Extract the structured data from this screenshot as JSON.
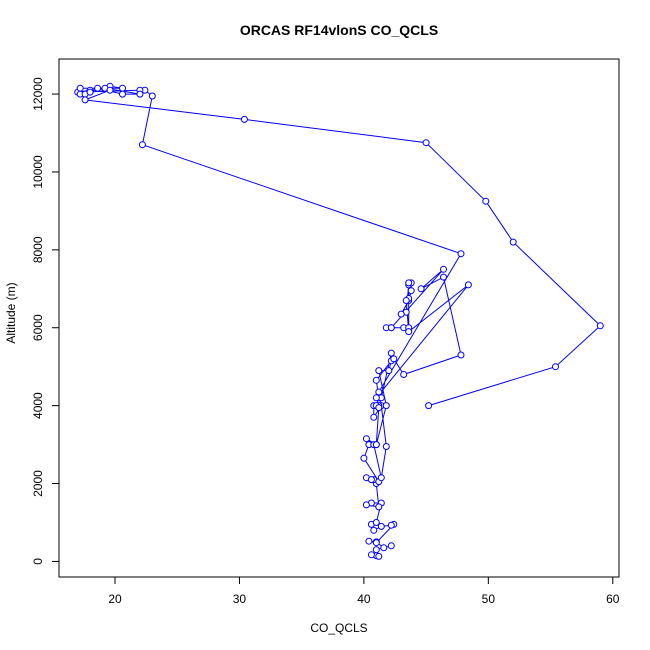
{
  "chart_data": {
    "type": "line",
    "title": "ORCAS RF14vlonS CO_QCLS",
    "xlabel": "CO_QCLS",
    "ylabel": "Altitude (m)",
    "xlim": [
      15.5,
      60.5
    ],
    "ylim": [
      -400,
      12900
    ],
    "xticks": [
      20,
      30,
      40,
      50,
      60
    ],
    "yticks": [
      0,
      2000,
      4000,
      6000,
      8000,
      10000,
      12000
    ],
    "grid": false,
    "series": [
      {
        "color": "#0000ff",
        "marker": "open-circle",
        "points": [
          [
            41.0,
            150
          ],
          [
            40.6,
            170
          ],
          [
            41.2,
            130
          ],
          [
            41.0,
            300
          ],
          [
            42.2,
            400
          ],
          [
            41.6,
            350
          ],
          [
            41.0,
            500
          ],
          [
            40.4,
            520
          ],
          [
            41.0,
            480
          ],
          [
            42.4,
            950
          ],
          [
            42.2,
            930
          ],
          [
            41.4,
            900
          ],
          [
            40.8,
            800
          ],
          [
            40.6,
            950
          ],
          [
            41.0,
            1000
          ],
          [
            41.4,
            1500
          ],
          [
            40.6,
            1500
          ],
          [
            40.2,
            1450
          ],
          [
            41.2,
            1400
          ],
          [
            41.0,
            2000
          ],
          [
            40.8,
            2100
          ],
          [
            40.2,
            2150
          ],
          [
            40.6,
            2100
          ],
          [
            41.2,
            2050
          ],
          [
            40.0,
            2650
          ],
          [
            40.4,
            3000
          ],
          [
            41.0,
            3000
          ],
          [
            40.2,
            3150
          ],
          [
            40.8,
            3000
          ],
          [
            41.4,
            2150
          ],
          [
            41.8,
            2950
          ],
          [
            41.4,
            4000
          ],
          [
            40.8,
            3700
          ],
          [
            40.8,
            4000
          ],
          [
            41.2,
            4000
          ],
          [
            41.0,
            4000
          ],
          [
            41.2,
            4200
          ],
          [
            41.0,
            4650
          ],
          [
            42.2,
            5150
          ],
          [
            42.0,
            4900
          ],
          [
            41.2,
            4900
          ],
          [
            41.8,
            4000
          ],
          [
            41.0,
            3000
          ],
          [
            41.2,
            3950
          ],
          [
            41.4,
            4200
          ],
          [
            42.2,
            5350
          ],
          [
            42.4,
            5200
          ],
          [
            43.2,
            4800
          ],
          [
            47.8,
            5300
          ],
          [
            46.4,
            7300
          ],
          [
            44.6,
            7000
          ],
          [
            46.4,
            7500
          ],
          [
            42.2,
            6000
          ],
          [
            41.8,
            6000
          ],
          [
            42.2,
            6000
          ],
          [
            43.2,
            6000
          ],
          [
            43.6,
            6000
          ],
          [
            43.6,
            7100
          ],
          [
            43.4,
            6400
          ],
          [
            43.0,
            6350
          ],
          [
            43.6,
            6700
          ],
          [
            43.8,
            6950
          ],
          [
            43.8,
            7150
          ],
          [
            43.6,
            7150
          ],
          [
            43.6,
            6750
          ],
          [
            43.4,
            6700
          ],
          [
            43.6,
            5900
          ],
          [
            48.4,
            7100
          ],
          [
            41.0,
            4200
          ],
          [
            41.2,
            4350
          ],
          [
            47.8,
            7900
          ],
          [
            22.2,
            10700
          ],
          [
            23.0,
            11950
          ],
          [
            22.4,
            12100
          ],
          [
            22.0,
            12100
          ],
          [
            17.0,
            12050
          ],
          [
            18.0,
            12100
          ],
          [
            17.2,
            12000
          ],
          [
            17.6,
            12000
          ],
          [
            19.6,
            12200
          ],
          [
            20.6,
            12150
          ],
          [
            17.2,
            12150
          ],
          [
            19.2,
            12150
          ],
          [
            22.0,
            12000
          ],
          [
            20.6,
            12000
          ],
          [
            18.6,
            12150
          ],
          [
            18.0,
            12050
          ],
          [
            19.6,
            12100
          ],
          [
            17.6,
            11850
          ],
          [
            30.4,
            11350
          ],
          [
            45.0,
            10750
          ],
          [
            49.8,
            9250
          ],
          [
            52.0,
            8200
          ],
          [
            59.0,
            6050
          ],
          [
            55.4,
            5000
          ],
          [
            45.2,
            4000
          ]
        ]
      }
    ]
  }
}
